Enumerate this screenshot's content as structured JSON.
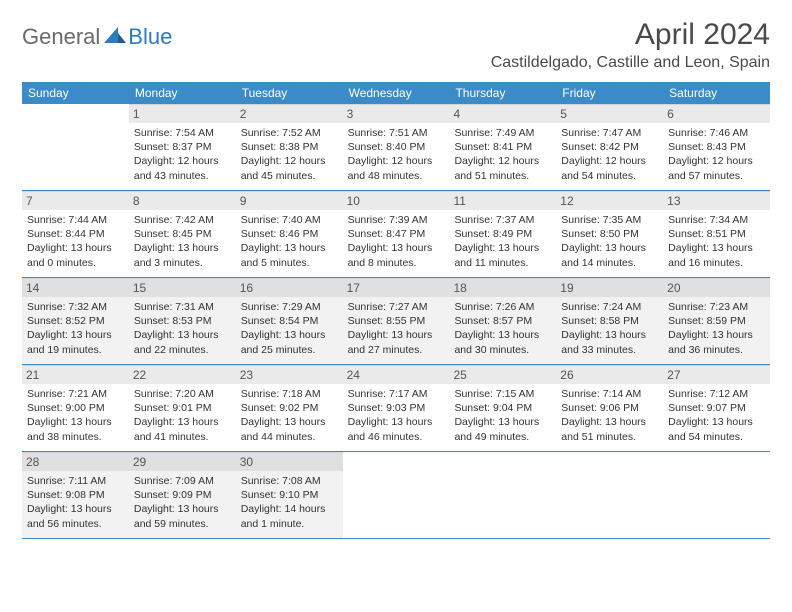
{
  "logo": {
    "general": "General",
    "blue": "Blue"
  },
  "title": "April 2024",
  "location": "Castildelgado, Castille and Leon, Spain",
  "colors": {
    "header_bg": "#3b8bc9",
    "header_text": "#ffffff",
    "daynum_bg": "#eaeaea",
    "shaded_bg": "#f2f2f2",
    "row_border": "#3b8bc9",
    "logo_gray": "#6a6a6a",
    "logo_blue": "#2d7bbf"
  },
  "weekdays": [
    "Sunday",
    "Monday",
    "Tuesday",
    "Wednesday",
    "Thursday",
    "Friday",
    "Saturday"
  ],
  "weeks": [
    [
      null,
      {
        "n": "1",
        "sr": "7:54 AM",
        "ss": "8:37 PM",
        "dl": "12 hours and 43 minutes."
      },
      {
        "n": "2",
        "sr": "7:52 AM",
        "ss": "8:38 PM",
        "dl": "12 hours and 45 minutes."
      },
      {
        "n": "3",
        "sr": "7:51 AM",
        "ss": "8:40 PM",
        "dl": "12 hours and 48 minutes."
      },
      {
        "n": "4",
        "sr": "7:49 AM",
        "ss": "8:41 PM",
        "dl": "12 hours and 51 minutes."
      },
      {
        "n": "5",
        "sr": "7:47 AM",
        "ss": "8:42 PM",
        "dl": "12 hours and 54 minutes."
      },
      {
        "n": "6",
        "sr": "7:46 AM",
        "ss": "8:43 PM",
        "dl": "12 hours and 57 minutes."
      }
    ],
    [
      {
        "n": "7",
        "sr": "7:44 AM",
        "ss": "8:44 PM",
        "dl": "13 hours and 0 minutes."
      },
      {
        "n": "8",
        "sr": "7:42 AM",
        "ss": "8:45 PM",
        "dl": "13 hours and 3 minutes."
      },
      {
        "n": "9",
        "sr": "7:40 AM",
        "ss": "8:46 PM",
        "dl": "13 hours and 5 minutes."
      },
      {
        "n": "10",
        "sr": "7:39 AM",
        "ss": "8:47 PM",
        "dl": "13 hours and 8 minutes."
      },
      {
        "n": "11",
        "sr": "7:37 AM",
        "ss": "8:49 PM",
        "dl": "13 hours and 11 minutes."
      },
      {
        "n": "12",
        "sr": "7:35 AM",
        "ss": "8:50 PM",
        "dl": "13 hours and 14 minutes."
      },
      {
        "n": "13",
        "sr": "7:34 AM",
        "ss": "8:51 PM",
        "dl": "13 hours and 16 minutes."
      }
    ],
    [
      {
        "n": "14",
        "sr": "7:32 AM",
        "ss": "8:52 PM",
        "dl": "13 hours and 19 minutes.",
        "shaded": true
      },
      {
        "n": "15",
        "sr": "7:31 AM",
        "ss": "8:53 PM",
        "dl": "13 hours and 22 minutes.",
        "shaded": true
      },
      {
        "n": "16",
        "sr": "7:29 AM",
        "ss": "8:54 PM",
        "dl": "13 hours and 25 minutes.",
        "shaded": true
      },
      {
        "n": "17",
        "sr": "7:27 AM",
        "ss": "8:55 PM",
        "dl": "13 hours and 27 minutes.",
        "shaded": true
      },
      {
        "n": "18",
        "sr": "7:26 AM",
        "ss": "8:57 PM",
        "dl": "13 hours and 30 minutes.",
        "shaded": true
      },
      {
        "n": "19",
        "sr": "7:24 AM",
        "ss": "8:58 PM",
        "dl": "13 hours and 33 minutes.",
        "shaded": true
      },
      {
        "n": "20",
        "sr": "7:23 AM",
        "ss": "8:59 PM",
        "dl": "13 hours and 36 minutes.",
        "shaded": true
      }
    ],
    [
      {
        "n": "21",
        "sr": "7:21 AM",
        "ss": "9:00 PM",
        "dl": "13 hours and 38 minutes."
      },
      {
        "n": "22",
        "sr": "7:20 AM",
        "ss": "9:01 PM",
        "dl": "13 hours and 41 minutes."
      },
      {
        "n": "23",
        "sr": "7:18 AM",
        "ss": "9:02 PM",
        "dl": "13 hours and 44 minutes."
      },
      {
        "n": "24",
        "sr": "7:17 AM",
        "ss": "9:03 PM",
        "dl": "13 hours and 46 minutes."
      },
      {
        "n": "25",
        "sr": "7:15 AM",
        "ss": "9:04 PM",
        "dl": "13 hours and 49 minutes."
      },
      {
        "n": "26",
        "sr": "7:14 AM",
        "ss": "9:06 PM",
        "dl": "13 hours and 51 minutes."
      },
      {
        "n": "27",
        "sr": "7:12 AM",
        "ss": "9:07 PM",
        "dl": "13 hours and 54 minutes."
      }
    ],
    [
      {
        "n": "28",
        "sr": "7:11 AM",
        "ss": "9:08 PM",
        "dl": "13 hours and 56 minutes.",
        "shaded": true
      },
      {
        "n": "29",
        "sr": "7:09 AM",
        "ss": "9:09 PM",
        "dl": "13 hours and 59 minutes.",
        "shaded": true
      },
      {
        "n": "30",
        "sr": "7:08 AM",
        "ss": "9:10 PM",
        "dl": "14 hours and 1 minute.",
        "shaded": true
      },
      null,
      null,
      null,
      null
    ]
  ],
  "labels": {
    "sunrise": "Sunrise:",
    "sunset": "Sunset:",
    "daylight": "Daylight:"
  }
}
